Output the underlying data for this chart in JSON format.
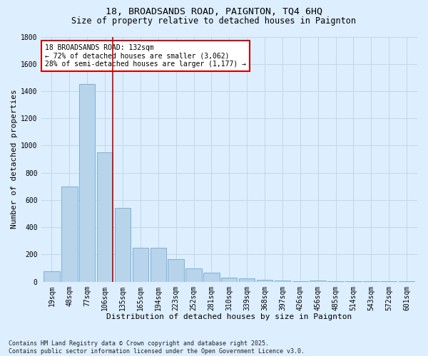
{
  "title_line1": "18, BROADSANDS ROAD, PAIGNTON, TQ4 6HQ",
  "title_line2": "Size of property relative to detached houses in Paignton",
  "xlabel": "Distribution of detached houses by size in Paignton",
  "ylabel": "Number of detached properties",
  "categories": [
    "19sqm",
    "48sqm",
    "77sqm",
    "106sqm",
    "135sqm",
    "165sqm",
    "194sqm",
    "223sqm",
    "252sqm",
    "281sqm",
    "310sqm",
    "339sqm",
    "368sqm",
    "397sqm",
    "426sqm",
    "456sqm",
    "485sqm",
    "514sqm",
    "543sqm",
    "572sqm",
    "601sqm"
  ],
  "values": [
    75,
    700,
    1450,
    950,
    540,
    250,
    250,
    165,
    100,
    65,
    30,
    25,
    15,
    8,
    5,
    8,
    5,
    5,
    5,
    5,
    5
  ],
  "bar_color": "#b8d4ea",
  "bar_edgecolor": "#6aaad4",
  "grid_color": "#c0d8ea",
  "background_color": "#ddeeff",
  "vline_x_index": 3.45,
  "vline_color": "#cc0000",
  "annotation_text": "18 BROADSANDS ROAD: 132sqm\n← 72% of detached houses are smaller (3,062)\n28% of semi-detached houses are larger (1,177) →",
  "annotation_box_facecolor": "#ffffff",
  "annotation_box_edgecolor": "#cc0000",
  "ylim": [
    0,
    1800
  ],
  "yticks": [
    0,
    200,
    400,
    600,
    800,
    1000,
    1200,
    1400,
    1600,
    1800
  ],
  "footnote": "Contains HM Land Registry data © Crown copyright and database right 2025.\nContains public sector information licensed under the Open Government Licence v3.0.",
  "title_fontsize": 9.5,
  "subtitle_fontsize": 8.5,
  "axis_label_fontsize": 8,
  "tick_fontsize": 7,
  "annot_fontsize": 7,
  "footnote_fontsize": 6
}
